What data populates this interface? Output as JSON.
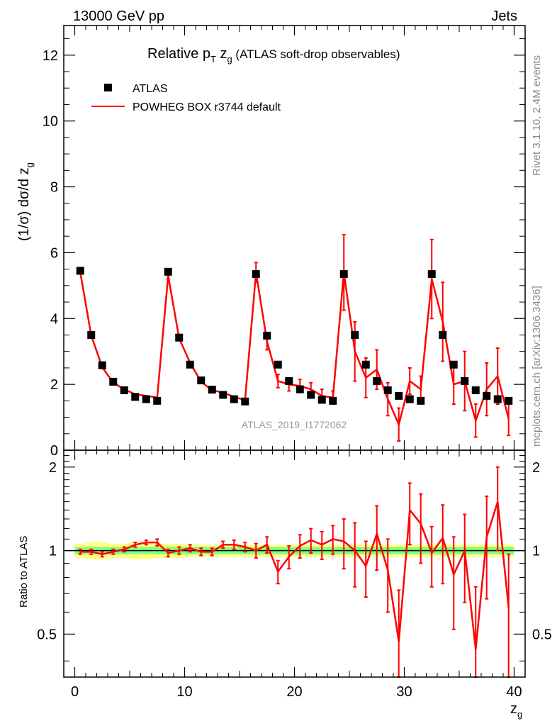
{
  "header": {
    "left": "13000 GeV pp",
    "right": "Jets"
  },
  "side_labels": {
    "rivet": "Rivet 3.1.10,  2.4M events",
    "mcplots": "mcplots.cern.ch [arXiv:1306.3436]"
  },
  "chart_data": {
    "type": "scatter",
    "title_parts": {
      "prefix": "Relative p",
      "sub1": "T",
      "mid": " z",
      "sub2": "g",
      "suffix": " (ATLAS soft-drop observables)"
    },
    "watermark": "ATLAS_2019_I1772062",
    "ylabel_parts": {
      "main": "(1/σ) dσ/d z",
      "sub": "g"
    },
    "xlabel_parts": {
      "main": "z",
      "sub": "g"
    },
    "ratio_ylabel": "Ratio to ATLAS",
    "xlim": [
      -1,
      41
    ],
    "ylim": [
      0,
      12.9
    ],
    "ratio_ylim": [
      0.35,
      2.3
    ],
    "x_ticks": [
      "0",
      "10",
      "20",
      "30",
      "40"
    ],
    "x_tick_values": [
      0,
      10,
      20,
      30,
      40
    ],
    "y_ticks": [
      "0",
      "2",
      "4",
      "6",
      "8",
      "10",
      "12"
    ],
    "y_tick_values": [
      0,
      2,
      4,
      6,
      8,
      10,
      12
    ],
    "ratio_y_ticks": [
      "0.5",
      "1",
      "2"
    ],
    "ratio_y_tick_values": [
      0.5,
      1,
      2
    ],
    "legend": [
      {
        "name": "ATLAS",
        "marker": "square",
        "color": "#000000"
      },
      {
        "name": "POWHEG BOX r3744 default",
        "marker": "line",
        "color": "#ff0000"
      }
    ],
    "x": [
      0.5,
      1.5,
      2.5,
      3.5,
      4.5,
      5.5,
      6.5,
      7.5,
      8.5,
      9.5,
      10.5,
      11.5,
      12.5,
      13.5,
      14.5,
      15.5,
      16.5,
      17.5,
      18.5,
      19.5,
      20.5,
      21.5,
      22.5,
      23.5,
      24.5,
      25.5,
      26.5,
      27.5,
      28.5,
      29.5,
      30.5,
      31.5,
      32.5,
      33.5,
      34.5,
      35.5,
      36.5,
      37.5,
      38.5,
      39.5
    ],
    "series": [
      {
        "name": "ATLAS",
        "values": [
          5.45,
          3.5,
          2.58,
          2.08,
          1.82,
          1.62,
          1.55,
          1.5,
          5.42,
          3.42,
          2.6,
          2.12,
          1.84,
          1.68,
          1.55,
          1.48,
          5.35,
          3.48,
          2.6,
          2.1,
          1.85,
          1.68,
          1.53,
          1.5,
          5.35,
          3.5,
          2.6,
          2.1,
          1.82,
          1.65,
          1.55,
          1.5,
          5.35,
          3.5,
          2.6,
          2.1,
          1.82,
          1.65,
          1.55,
          1.5
        ]
      },
      {
        "name": "POWHEG BOX r3744 default",
        "values": [
          5.4,
          3.48,
          2.52,
          2.05,
          1.85,
          1.7,
          1.65,
          1.6,
          5.3,
          3.4,
          2.65,
          2.08,
          1.82,
          1.75,
          1.62,
          1.52,
          5.4,
          3.3,
          2.1,
          2.0,
          1.95,
          1.85,
          1.65,
          1.6,
          5.4,
          3.0,
          2.2,
          2.45,
          1.55,
          0.78,
          2.1,
          1.85,
          5.2,
          3.9,
          2.0,
          2.1,
          0.9,
          1.85,
          2.25,
          0.95
        ],
        "yerr": [
          0.05,
          0.05,
          0.04,
          0.04,
          0.03,
          0.03,
          0.03,
          0.03,
          0.1,
          0.06,
          0.05,
          0.05,
          0.05,
          0.07,
          0.07,
          0.07,
          0.3,
          0.25,
          0.2,
          0.2,
          0.2,
          0.2,
          0.2,
          0.2,
          1.15,
          0.9,
          0.6,
          0.6,
          0.5,
          0.5,
          0.4,
          0.4,
          1.2,
          1.2,
          0.6,
          0.9,
          0.5,
          0.8,
          0.85,
          0.5
        ]
      }
    ],
    "ratio_values": [
      0.99,
      0.99,
      0.97,
      0.99,
      1.01,
      1.05,
      1.07,
      1.07,
      0.98,
      1.0,
      1.02,
      0.99,
      0.99,
      1.05,
      1.05,
      1.03,
      1.0,
      1.05,
      0.84,
      0.95,
      1.04,
      1.09,
      1.05,
      1.1,
      1.08,
      1.0,
      0.88,
      1.15,
      0.85,
      0.47,
      1.4,
      1.25,
      0.98,
      1.11,
      0.82,
      1.0,
      0.44,
      1.12,
      1.5,
      0.62
    ],
    "ratio_err": [
      0.02,
      0.02,
      0.02,
      0.02,
      0.02,
      0.02,
      0.02,
      0.03,
      0.03,
      0.03,
      0.03,
      0.03,
      0.03,
      0.03,
      0.04,
      0.04,
      0.06,
      0.07,
      0.08,
      0.09,
      0.1,
      0.11,
      0.12,
      0.13,
      0.22,
      0.26,
      0.2,
      0.3,
      0.25,
      0.25,
      0.35,
      0.35,
      0.24,
      0.35,
      0.3,
      0.35,
      0.3,
      0.45,
      0.5,
      0.35
    ],
    "band_inner": [
      0.03,
      0.03,
      0.03,
      0.03,
      0.03,
      0.03,
      0.03,
      0.03,
      0.03,
      0.03,
      0.03,
      0.03,
      0.03,
      0.03,
      0.03,
      0.03,
      0.03,
      0.03,
      0.03,
      0.03,
      0.03,
      0.03,
      0.03,
      0.03,
      0.03,
      0.03,
      0.03,
      0.03,
      0.03,
      0.03,
      0.03,
      0.03,
      0.03,
      0.03,
      0.03,
      0.03,
      0.03,
      0.03,
      0.03,
      0.03
    ],
    "band_outer": [
      0.06,
      0.07,
      0.07,
      0.06,
      0.06,
      0.07,
      0.07,
      0.06,
      0.06,
      0.06,
      0.05,
      0.05,
      0.05,
      0.05,
      0.05,
      0.05,
      0.05,
      0.05,
      0.05,
      0.05,
      0.05,
      0.05,
      0.05,
      0.05,
      0.05,
      0.05,
      0.05,
      0.05,
      0.05,
      0.05,
      0.05,
      0.05,
      0.05,
      0.05,
      0.05,
      0.05,
      0.05,
      0.05,
      0.05,
      0.05
    ],
    "colors": {
      "data": "#000000",
      "mc": "#ff0000",
      "band_inner": "#80ff80",
      "band_outer": "#ffff80",
      "watermark": "#9a9a9a"
    }
  }
}
